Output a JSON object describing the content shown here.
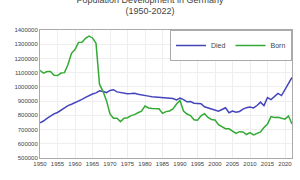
{
  "chart_data": {
    "type": "line",
    "title": "Population Development in Germany",
    "subtitle": "(1950-2022)",
    "x": [
      1950,
      1951,
      1952,
      1953,
      1954,
      1955,
      1956,
      1957,
      1958,
      1959,
      1960,
      1961,
      1962,
      1963,
      1964,
      1965,
      1966,
      1967,
      1968,
      1969,
      1970,
      1971,
      1972,
      1973,
      1974,
      1975,
      1976,
      1977,
      1978,
      1979,
      1980,
      1981,
      1982,
      1983,
      1984,
      1985,
      1986,
      1987,
      1988,
      1989,
      1990,
      1991,
      1992,
      1993,
      1994,
      1995,
      1996,
      1997,
      1998,
      1999,
      2000,
      2001,
      2002,
      2003,
      2004,
      2005,
      2006,
      2007,
      2008,
      2009,
      2010,
      2011,
      2012,
      2013,
      2014,
      2015,
      2016,
      2017,
      2018,
      2019,
      2020,
      2021,
      2022
    ],
    "series": [
      {
        "name": "Died",
        "color": "#4444bb",
        "values": [
          748000,
          760000,
          778000,
          795000,
          810000,
          820000,
          838000,
          852000,
          868000,
          878000,
          888000,
          898000,
          912000,
          926000,
          940000,
          950000,
          958000,
          972000,
          968000,
          960000,
          975000,
          980000,
          965000,
          960000,
          958000,
          952000,
          953000,
          955000,
          948000,
          945000,
          941000,
          935000,
          930000,
          928000,
          926000,
          924000,
          922000,
          920000,
          918000,
          908000,
          921000,
          911000,
          895000,
          897000,
          885000,
          884000,
          882000,
          860000,
          852000,
          848000,
          838000,
          829000,
          841000,
          853000,
          818000,
          830000,
          822000,
          827000,
          844000,
          854000,
          858000,
          852000,
          869000,
          893000,
          868000,
          925000,
          911000,
          932000,
          954000,
          939000,
          985000,
          1023000,
          1066000
        ]
      },
      {
        "name": "Born",
        "color": "#33aa33",
        "values": [
          1116000,
          1096000,
          1108000,
          1108000,
          1081000,
          1080000,
          1097000,
          1100000,
          1157000,
          1236000,
          1262000,
          1313000,
          1314000,
          1342000,
          1357000,
          1344000,
          1307000,
          1019000,
          969000,
          903000,
          810000,
          779000,
          780000,
          756000,
          780000,
          783000,
          798000,
          805000,
          818000,
          830000,
          865000,
          852000,
          848000,
          845000,
          846000,
          814000,
          826000,
          831000,
          845000,
          880000,
          905000,
          830000,
          809000,
          798000,
          769000,
          765000,
          796000,
          812000,
          785000,
          771000,
          767000,
          734000,
          720000,
          706000,
          705000,
          686000,
          673000,
          685000,
          683000,
          665000,
          678000,
          663000,
          674000,
          683000,
          715000,
          738000,
          791000,
          785000,
          787000,
          778000,
          773000,
          795000,
          739000
        ]
      }
    ],
    "xlim": [
      1950,
      2022
    ],
    "xticks": [
      1950,
      1955,
      1960,
      1965,
      1970,
      1975,
      1980,
      1985,
      1990,
      1995,
      2000,
      2005,
      2010,
      2015,
      2020
    ],
    "ylim": [
      500000,
      1400000
    ],
    "yticks": [
      500000,
      600000,
      700000,
      800000,
      900000,
      1000000,
      1100000,
      1200000,
      1300000,
      1400000
    ],
    "grid": true,
    "legend": "upper right"
  }
}
